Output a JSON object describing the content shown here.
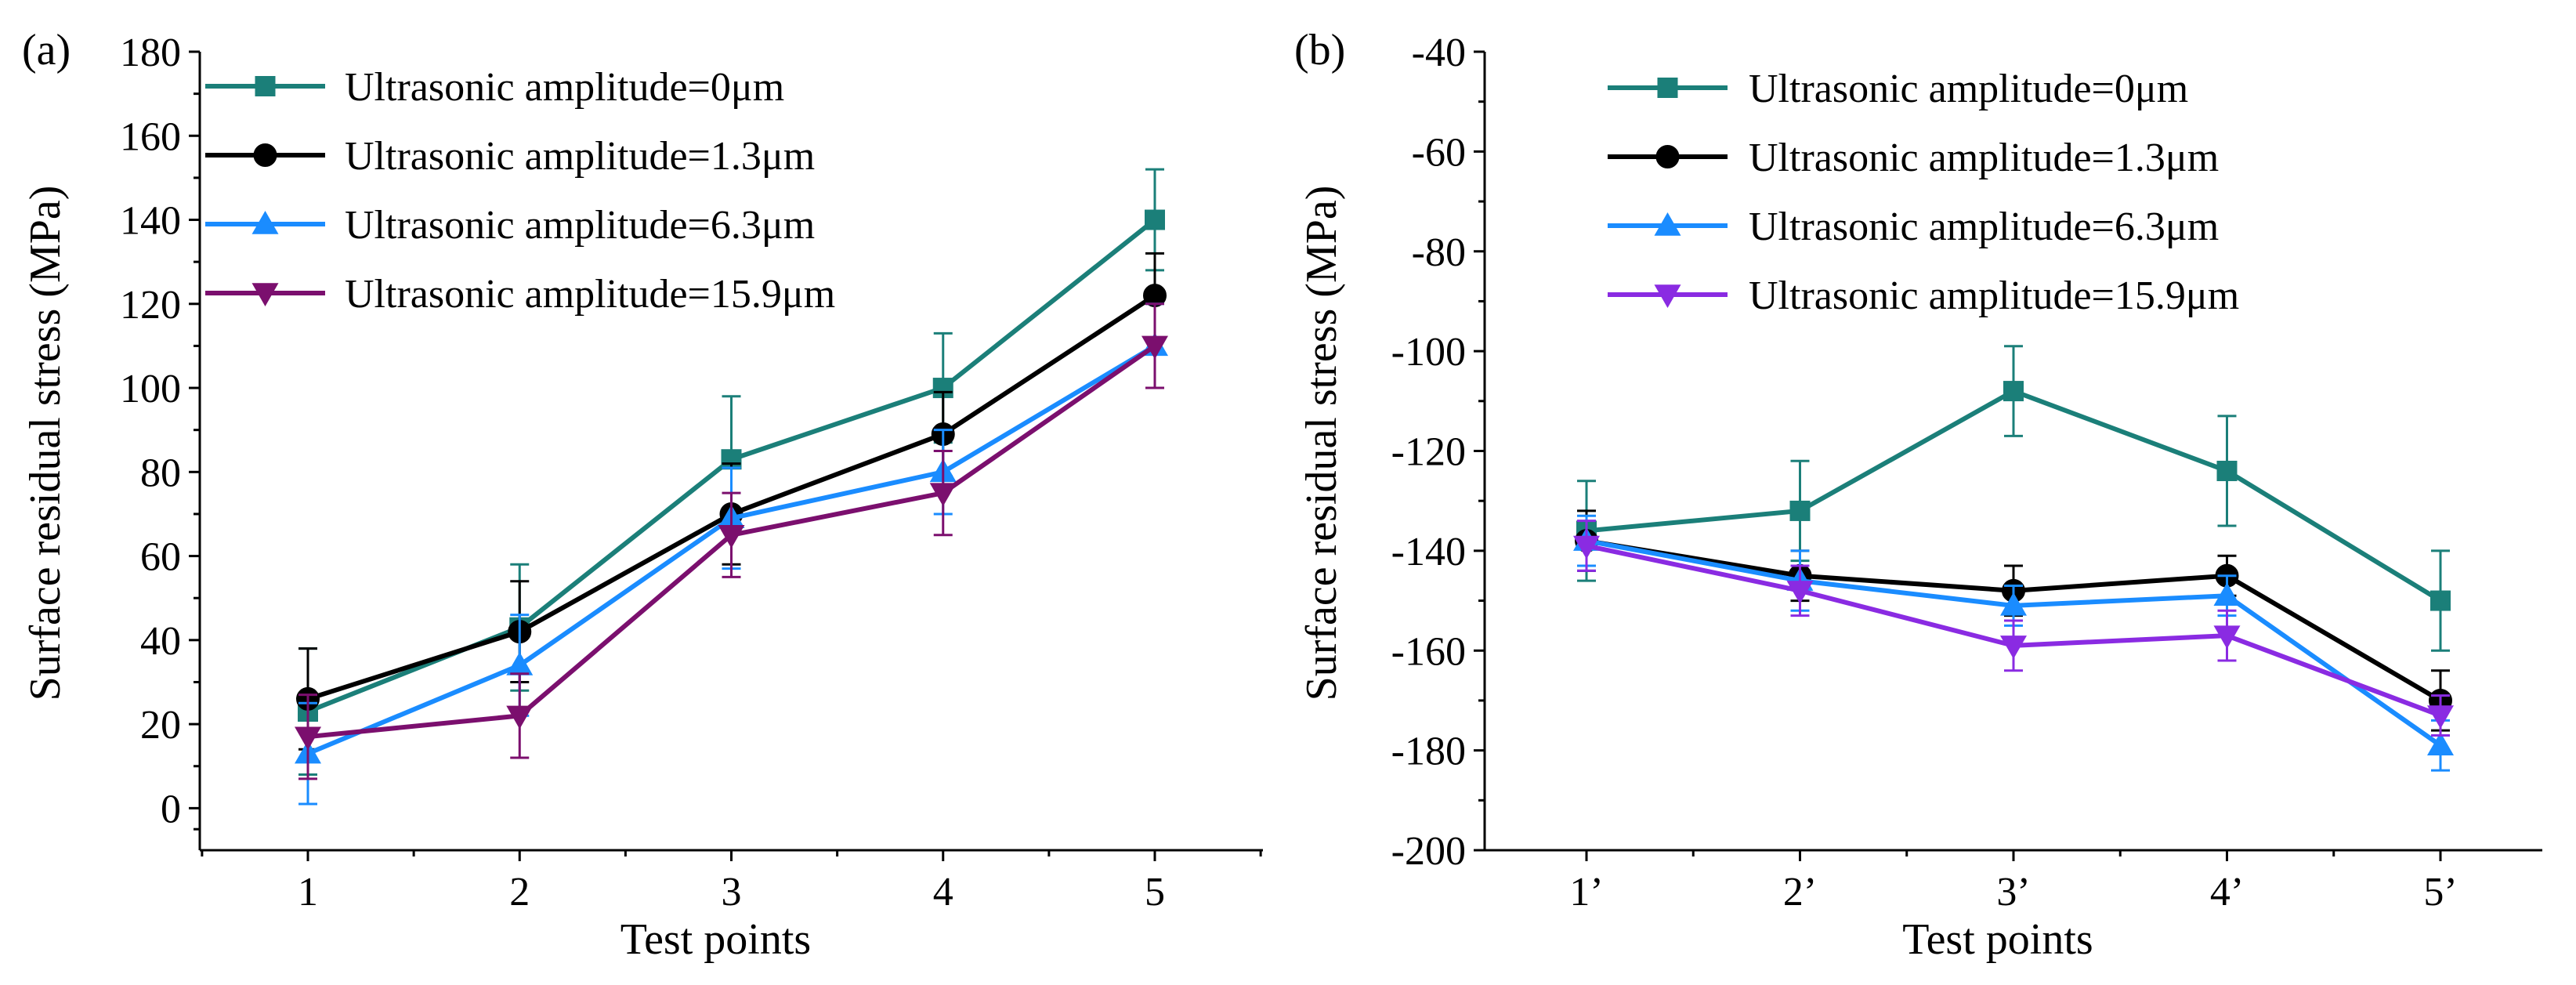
{
  "chart_data": [
    {
      "type": "line",
      "panel_label": "(a)",
      "categories": [
        "1",
        "2",
        "3",
        "4",
        "5"
      ],
      "xlabel": "Test points",
      "ylabel": "Surface residual stress (MPa)",
      "ylim": [
        -10,
        180
      ],
      "yticks": [
        "0",
        "20",
        "40",
        "60",
        "80",
        "100",
        "120",
        "140",
        "160",
        "180"
      ],
      "ytick_values": [
        0,
        20,
        40,
        60,
        80,
        100,
        120,
        140,
        160,
        180
      ],
      "legend_position": "top-left",
      "series": [
        {
          "name": "Ultrasonic amplitude=0μm",
          "color": "#1b7f79",
          "marker": "square",
          "values": [
            23,
            43,
            83,
            100,
            140
          ],
          "errors": [
            15,
            15,
            15,
            13,
            12
          ]
        },
        {
          "name": "Ultrasonic amplitude=1.3μm",
          "color": "#000000",
          "marker": "circle",
          "values": [
            26,
            42,
            70,
            89,
            122
          ],
          "errors": [
            12,
            12,
            12,
            10,
            10
          ]
        },
        {
          "name": "Ultrasonic amplitude=6.3μm",
          "color": "#1a8cff",
          "marker": "triangle-up",
          "values": [
            13,
            34,
            69,
            80,
            110
          ],
          "errors": [
            12,
            12,
            12,
            10,
            10
          ]
        },
        {
          "name": "Ultrasonic amplitude=15.9μm",
          "color": "#7b0f6e",
          "marker": "triangle-down",
          "values": [
            17,
            22,
            65,
            75,
            110
          ],
          "errors": [
            10,
            10,
            10,
            10,
            10
          ]
        }
      ]
    },
    {
      "type": "line",
      "panel_label": "(b)",
      "categories": [
        "1’",
        "2’",
        "3’",
        "4’",
        "5’"
      ],
      "xlabel": "Test points",
      "ylabel": "Surface residual stress (MPa)",
      "ylim": [
        -200,
        -40
      ],
      "yticks": [
        "-40",
        "-60",
        "-80",
        "-100",
        "-120",
        "-140",
        "-160",
        "-180",
        "-200"
      ],
      "ytick_values": [
        -40,
        -60,
        -80,
        -100,
        -120,
        -140,
        -160,
        -180,
        -200
      ],
      "legend_position": "top-center",
      "series": [
        {
          "name": "Ultrasonic amplitude=0μm",
          "color": "#1b7f79",
          "marker": "square",
          "values": [
            -136,
            -132,
            -108,
            -124,
            -150
          ],
          "errors": [
            10,
            10,
            9,
            11,
            10
          ]
        },
        {
          "name": "Ultrasonic amplitude=1.3μm",
          "color": "#000000",
          "marker": "circle",
          "values": [
            -138,
            -145,
            -148,
            -145,
            -170
          ],
          "errors": [
            6,
            5,
            5,
            4,
            6
          ]
        },
        {
          "name": "Ultrasonic amplitude=6.3μm",
          "color": "#1a8cff",
          "marker": "triangle-up",
          "values": [
            -138,
            -146,
            -151,
            -149,
            -179
          ],
          "errors": [
            5,
            6,
            4,
            4,
            5
          ]
        },
        {
          "name": "Ultrasonic amplitude=15.9μm",
          "color": "#8a2be2",
          "marker": "triangle-down",
          "values": [
            -139,
            -148,
            -159,
            -157,
            -173
          ],
          "errors": [
            5,
            5,
            5,
            5,
            4
          ]
        }
      ]
    }
  ]
}
